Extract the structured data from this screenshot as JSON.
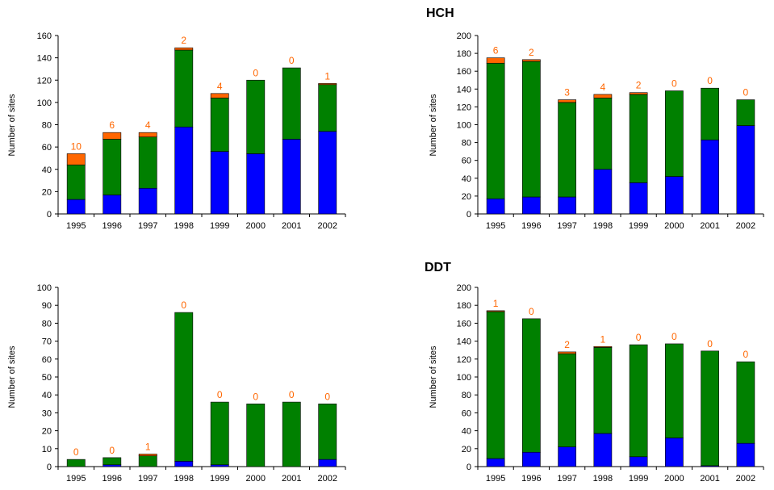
{
  "sections": {
    "hch_title": "HCH",
    "ddt_title": "DDT"
  },
  "colors": {
    "blue": "#0000ff",
    "green": "#008000",
    "orange": "#ff6600",
    "axis": "#000000"
  },
  "chart_data": [
    {
      "id": "hch-left",
      "type": "bar",
      "stacked": true,
      "categories": [
        "1995",
        "1996",
        "1997",
        "1998",
        "1999",
        "2000",
        "2001",
        "2002"
      ],
      "ylabel": "Number of sites",
      "ylim": [
        0,
        160
      ],
      "yticks": [
        0,
        20,
        40,
        60,
        80,
        100,
        120,
        140,
        160
      ],
      "series": [
        {
          "color": "blue",
          "values": [
            13,
            17,
            23,
            78,
            56,
            54,
            67,
            74
          ]
        },
        {
          "color": "green",
          "values": [
            31,
            50,
            46,
            69,
            48,
            66,
            64,
            42
          ]
        },
        {
          "color": "orange",
          "values": [
            10,
            6,
            4,
            2,
            4,
            0,
            0,
            1
          ]
        }
      ],
      "labels": [
        "10",
        "6",
        "4",
        "2",
        "4",
        "0",
        "0",
        "1"
      ]
    },
    {
      "id": "hch-right",
      "type": "bar",
      "stacked": true,
      "categories": [
        "1995",
        "1996",
        "1997",
        "1998",
        "1999",
        "2000",
        "2001",
        "2002"
      ],
      "ylabel": "Number of sites",
      "ylim": [
        0,
        200
      ],
      "yticks": [
        0,
        20,
        40,
        60,
        80,
        100,
        120,
        140,
        160,
        180,
        200
      ],
      "series": [
        {
          "color": "blue",
          "values": [
            17,
            19,
            19,
            50,
            35,
            42,
            83,
            99
          ]
        },
        {
          "color": "green",
          "values": [
            152,
            152,
            106,
            80,
            99,
            96,
            58,
            29
          ]
        },
        {
          "color": "orange",
          "values": [
            6,
            2,
            3,
            4,
            2,
            0,
            0,
            0
          ]
        }
      ],
      "labels": [
        "6",
        "2",
        "3",
        "4",
        "2",
        "0",
        "0",
        "0"
      ]
    },
    {
      "id": "ddt-left",
      "type": "bar",
      "stacked": true,
      "categories": [
        "1995",
        "1996",
        "1997",
        "1998",
        "1999",
        "2000",
        "2001",
        "2002"
      ],
      "ylabel": "Number of sites",
      "ylim": [
        0,
        100
      ],
      "yticks": [
        0,
        10,
        20,
        30,
        40,
        50,
        60,
        70,
        80,
        90,
        100
      ],
      "series": [
        {
          "color": "blue",
          "values": [
            0,
            1,
            0,
            3,
            1,
            0,
            0,
            4
          ]
        },
        {
          "color": "green",
          "values": [
            4,
            4,
            6,
            83,
            35,
            35,
            36,
            31
          ]
        },
        {
          "color": "orange",
          "values": [
            0,
            0,
            1,
            0,
            0,
            0,
            0,
            0
          ]
        }
      ],
      "labels": [
        "0",
        "0",
        "1",
        "0",
        "0",
        "0",
        "0",
        "0"
      ]
    },
    {
      "id": "ddt-right",
      "type": "bar",
      "stacked": true,
      "categories": [
        "1995",
        "1996",
        "1997",
        "1998",
        "1999",
        "2000",
        "2001",
        "2002"
      ],
      "ylabel": "Number of sites",
      "ylim": [
        0,
        200
      ],
      "yticks": [
        0,
        20,
        40,
        60,
        80,
        100,
        120,
        140,
        160,
        180,
        200
      ],
      "series": [
        {
          "color": "blue",
          "values": [
            9,
            16,
            22,
            37,
            11,
            32,
            1,
            26
          ]
        },
        {
          "color": "green",
          "values": [
            164,
            149,
            104,
            96,
            125,
            105,
            128,
            91
          ]
        },
        {
          "color": "orange",
          "values": [
            1,
            0,
            2,
            1,
            0,
            0,
            0,
            0
          ]
        }
      ],
      "labels": [
        "1",
        "0",
        "2",
        "1",
        "0",
        "0",
        "0",
        "0"
      ]
    }
  ]
}
